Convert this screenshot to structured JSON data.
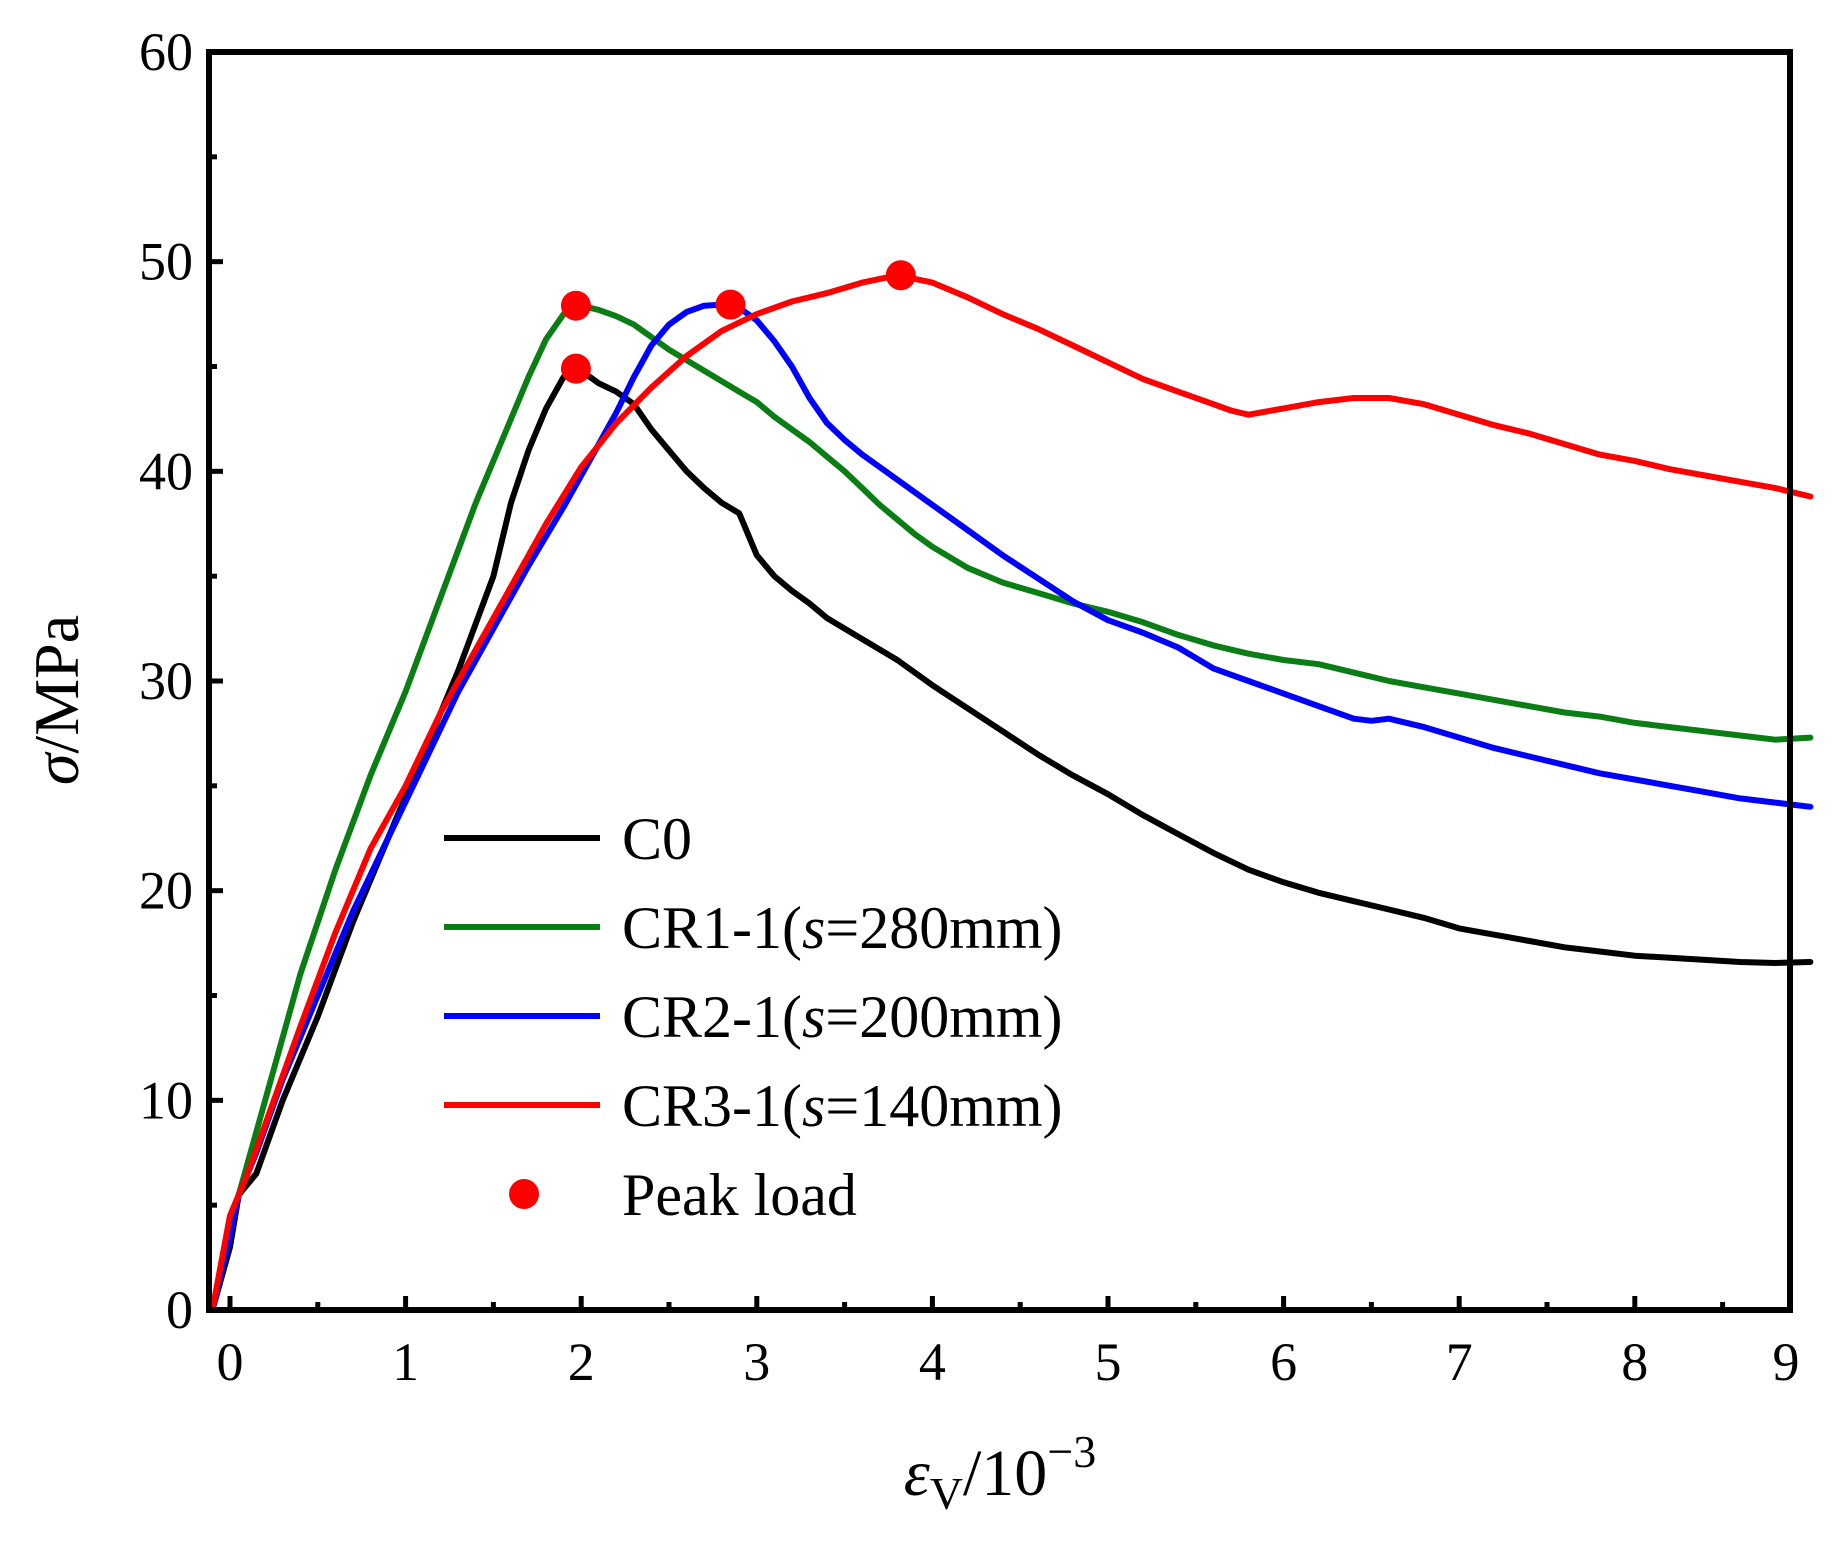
{
  "chart_data": {
    "type": "line",
    "title": "",
    "xlabel": {
      "main": "ε",
      "sub": "V",
      "unit": "/10",
      "exp": "−3"
    },
    "ylabel": {
      "main": "σ",
      "unit": "/MPa"
    },
    "xlim": [
      -0.1,
      9
    ],
    "ylim": [
      0,
      60
    ],
    "x_ticks": [
      "0",
      "1",
      "2",
      "3",
      "4",
      "5",
      "6",
      "7",
      "8",
      "9"
    ],
    "y_ticks": [
      "0",
      "10",
      "20",
      "30",
      "40",
      "50",
      "60"
    ],
    "grid": false,
    "legend_position": "left-middle",
    "series": [
      {
        "name": "C0",
        "legend": {
          "prefix": "C0",
          "italic": "",
          "suffix": ""
        },
        "color": "#000000",
        "points": [
          [
            -0.1,
            0
          ],
          [
            0,
            3
          ],
          [
            0.05,
            5.5
          ],
          [
            0.15,
            6.5
          ],
          [
            0.3,
            10
          ],
          [
            0.5,
            14
          ],
          [
            0.7,
            18.5
          ],
          [
            0.9,
            22.5
          ],
          [
            1.1,
            26.5
          ],
          [
            1.3,
            30.5
          ],
          [
            1.5,
            35
          ],
          [
            1.6,
            38.5
          ],
          [
            1.7,
            41
          ],
          [
            1.8,
            43
          ],
          [
            1.9,
            44.5
          ],
          [
            1.95,
            45
          ],
          [
            2.0,
            44.8
          ],
          [
            2.1,
            44.2
          ],
          [
            2.2,
            43.8
          ],
          [
            2.3,
            43.2
          ],
          [
            2.4,
            42
          ],
          [
            2.5,
            41
          ],
          [
            2.6,
            40
          ],
          [
            2.7,
            39.2
          ],
          [
            2.8,
            38.5
          ],
          [
            2.9,
            38
          ],
          [
            3.0,
            36
          ],
          [
            3.1,
            35
          ],
          [
            3.2,
            34.3
          ],
          [
            3.3,
            33.7
          ],
          [
            3.4,
            33
          ],
          [
            3.6,
            32
          ],
          [
            3.8,
            31
          ],
          [
            4.0,
            29.8
          ],
          [
            4.2,
            28.7
          ],
          [
            4.4,
            27.6
          ],
          [
            4.6,
            26.5
          ],
          [
            4.8,
            25.5
          ],
          [
            5.0,
            24.6
          ],
          [
            5.2,
            23.6
          ],
          [
            5.4,
            22.7
          ],
          [
            5.6,
            21.8
          ],
          [
            5.8,
            21
          ],
          [
            6.0,
            20.4
          ],
          [
            6.2,
            19.9
          ],
          [
            6.4,
            19.5
          ],
          [
            6.6,
            19.1
          ],
          [
            6.8,
            18.7
          ],
          [
            7.0,
            18.2
          ],
          [
            7.2,
            17.9
          ],
          [
            7.4,
            17.6
          ],
          [
            7.6,
            17.3
          ],
          [
            7.8,
            17.1
          ],
          [
            8.0,
            16.9
          ],
          [
            8.2,
            16.8
          ],
          [
            8.4,
            16.7
          ],
          [
            8.6,
            16.6
          ],
          [
            8.8,
            16.55
          ],
          [
            9.0,
            16.6
          ]
        ]
      },
      {
        "name": "CR1-1(s=280mm)",
        "legend": {
          "prefix": "CR1-1(",
          "italic": "s",
          "suffix": "=280mm)"
        },
        "color": "#0a7d14",
        "points": [
          [
            -0.1,
            0
          ],
          [
            0,
            4
          ],
          [
            0.1,
            7
          ],
          [
            0.25,
            11.5
          ],
          [
            0.4,
            16
          ],
          [
            0.6,
            21
          ],
          [
            0.8,
            25.5
          ],
          [
            1.0,
            29.5
          ],
          [
            1.2,
            34
          ],
          [
            1.4,
            38.5
          ],
          [
            1.5,
            40.5
          ],
          [
            1.6,
            42.5
          ],
          [
            1.7,
            44.5
          ],
          [
            1.8,
            46.3
          ],
          [
            1.9,
            47.5
          ],
          [
            2.0,
            47.9
          ],
          [
            2.1,
            47.7
          ],
          [
            2.2,
            47.4
          ],
          [
            2.3,
            47
          ],
          [
            2.4,
            46.4
          ],
          [
            2.5,
            45.8
          ],
          [
            2.6,
            45.3
          ],
          [
            2.7,
            44.8
          ],
          [
            2.8,
            44.3
          ],
          [
            2.9,
            43.8
          ],
          [
            3.0,
            43.3
          ],
          [
            3.1,
            42.6
          ],
          [
            3.2,
            42
          ],
          [
            3.3,
            41.4
          ],
          [
            3.4,
            40.7
          ],
          [
            3.5,
            40
          ],
          [
            3.6,
            39.2
          ],
          [
            3.7,
            38.4
          ],
          [
            3.8,
            37.7
          ],
          [
            3.9,
            37
          ],
          [
            4.0,
            36.4
          ],
          [
            4.2,
            35.4
          ],
          [
            4.4,
            34.7
          ],
          [
            4.6,
            34.2
          ],
          [
            4.8,
            33.7
          ],
          [
            5.0,
            33.3
          ],
          [
            5.2,
            32.8
          ],
          [
            5.4,
            32.2
          ],
          [
            5.6,
            31.7
          ],
          [
            5.8,
            31.3
          ],
          [
            6.0,
            31
          ],
          [
            6.2,
            30.8
          ],
          [
            6.4,
            30.4
          ],
          [
            6.6,
            30
          ],
          [
            6.8,
            29.7
          ],
          [
            7.0,
            29.4
          ],
          [
            7.2,
            29.1
          ],
          [
            7.4,
            28.8
          ],
          [
            7.6,
            28.5
          ],
          [
            7.8,
            28.3
          ],
          [
            8.0,
            28
          ],
          [
            8.2,
            27.8
          ],
          [
            8.4,
            27.6
          ],
          [
            8.6,
            27.4
          ],
          [
            8.8,
            27.2
          ],
          [
            9.0,
            27.3
          ]
        ]
      },
      {
        "name": "CR2-1(s=200mm)",
        "legend": {
          "prefix": "CR2-1(",
          "italic": "s",
          "suffix": "=200mm)"
        },
        "color": "#0000ff",
        "points": [
          [
            -0.1,
            0
          ],
          [
            0,
            3.5
          ],
          [
            0.05,
            5.5
          ],
          [
            0.15,
            7.5
          ],
          [
            0.3,
            11
          ],
          [
            0.5,
            15
          ],
          [
            0.7,
            19
          ],
          [
            0.9,
            22.5
          ],
          [
            1.1,
            26
          ],
          [
            1.3,
            29.5
          ],
          [
            1.5,
            32.5
          ],
          [
            1.7,
            35.5
          ],
          [
            1.9,
            38.3
          ],
          [
            2.0,
            39.8
          ],
          [
            2.1,
            41.3
          ],
          [
            2.2,
            42.8
          ],
          [
            2.3,
            44.5
          ],
          [
            2.4,
            46
          ],
          [
            2.5,
            47
          ],
          [
            2.6,
            47.6
          ],
          [
            2.7,
            47.9
          ],
          [
            2.8,
            47.95
          ],
          [
            2.9,
            47.8
          ],
          [
            3.0,
            47.2
          ],
          [
            3.1,
            46.2
          ],
          [
            3.2,
            45
          ],
          [
            3.3,
            43.5
          ],
          [
            3.4,
            42.3
          ],
          [
            3.5,
            41.5
          ],
          [
            3.6,
            40.8
          ],
          [
            3.8,
            39.6
          ],
          [
            4.0,
            38.4
          ],
          [
            4.2,
            37.2
          ],
          [
            4.4,
            36
          ],
          [
            4.6,
            34.9
          ],
          [
            4.8,
            33.8
          ],
          [
            5.0,
            32.9
          ],
          [
            5.2,
            32.3
          ],
          [
            5.4,
            31.6
          ],
          [
            5.6,
            30.6
          ],
          [
            5.8,
            30
          ],
          [
            6.0,
            29.4
          ],
          [
            6.2,
            28.8
          ],
          [
            6.4,
            28.2
          ],
          [
            6.5,
            28.1
          ],
          [
            6.6,
            28.2
          ],
          [
            6.8,
            27.8
          ],
          [
            7.0,
            27.3
          ],
          [
            7.2,
            26.8
          ],
          [
            7.4,
            26.4
          ],
          [
            7.6,
            26
          ],
          [
            7.8,
            25.6
          ],
          [
            8.0,
            25.3
          ],
          [
            8.2,
            25
          ],
          [
            8.4,
            24.7
          ],
          [
            8.6,
            24.4
          ],
          [
            8.8,
            24.2
          ],
          [
            9.0,
            24
          ]
        ]
      },
      {
        "name": "CR3-1(s=140mm)",
        "legend": {
          "prefix": "CR3-1(",
          "italic": "s",
          "suffix": "=140mm)"
        },
        "color": "#ff0000",
        "points": [
          [
            -0.1,
            0
          ],
          [
            0,
            4.5
          ],
          [
            0.1,
            6.5
          ],
          [
            0.25,
            10
          ],
          [
            0.4,
            13.5
          ],
          [
            0.6,
            18
          ],
          [
            0.8,
            22
          ],
          [
            1.0,
            25
          ],
          [
            1.2,
            28.5
          ],
          [
            1.4,
            31.5
          ],
          [
            1.6,
            34.5
          ],
          [
            1.8,
            37.5
          ],
          [
            2.0,
            40.2
          ],
          [
            2.2,
            42.3
          ],
          [
            2.4,
            44
          ],
          [
            2.6,
            45.5
          ],
          [
            2.8,
            46.7
          ],
          [
            3.0,
            47.5
          ],
          [
            3.2,
            48.1
          ],
          [
            3.4,
            48.5
          ],
          [
            3.6,
            49
          ],
          [
            3.8,
            49.35
          ],
          [
            4.0,
            49
          ],
          [
            4.2,
            48.3
          ],
          [
            4.4,
            47.5
          ],
          [
            4.6,
            46.8
          ],
          [
            4.8,
            46
          ],
          [
            5.0,
            45.2
          ],
          [
            5.2,
            44.4
          ],
          [
            5.4,
            43.8
          ],
          [
            5.6,
            43.2
          ],
          [
            5.7,
            42.9
          ],
          [
            5.8,
            42.7
          ],
          [
            6.0,
            43
          ],
          [
            6.2,
            43.3
          ],
          [
            6.4,
            43.5
          ],
          [
            6.6,
            43.5
          ],
          [
            6.8,
            43.2
          ],
          [
            7.0,
            42.7
          ],
          [
            7.2,
            42.2
          ],
          [
            7.4,
            41.8
          ],
          [
            7.6,
            41.3
          ],
          [
            7.8,
            40.8
          ],
          [
            8.0,
            40.5
          ],
          [
            8.2,
            40.1
          ],
          [
            8.4,
            39.8
          ],
          [
            8.6,
            39.5
          ],
          [
            8.8,
            39.2
          ],
          [
            9.0,
            38.8
          ]
        ]
      }
    ],
    "peak_points": {
      "name": "Peak load",
      "color": "#ff0000",
      "points": [
        [
          1.97,
          47.9
        ],
        [
          1.97,
          44.9
        ],
        [
          2.85,
          47.95
        ],
        [
          3.82,
          49.35
        ]
      ]
    }
  }
}
